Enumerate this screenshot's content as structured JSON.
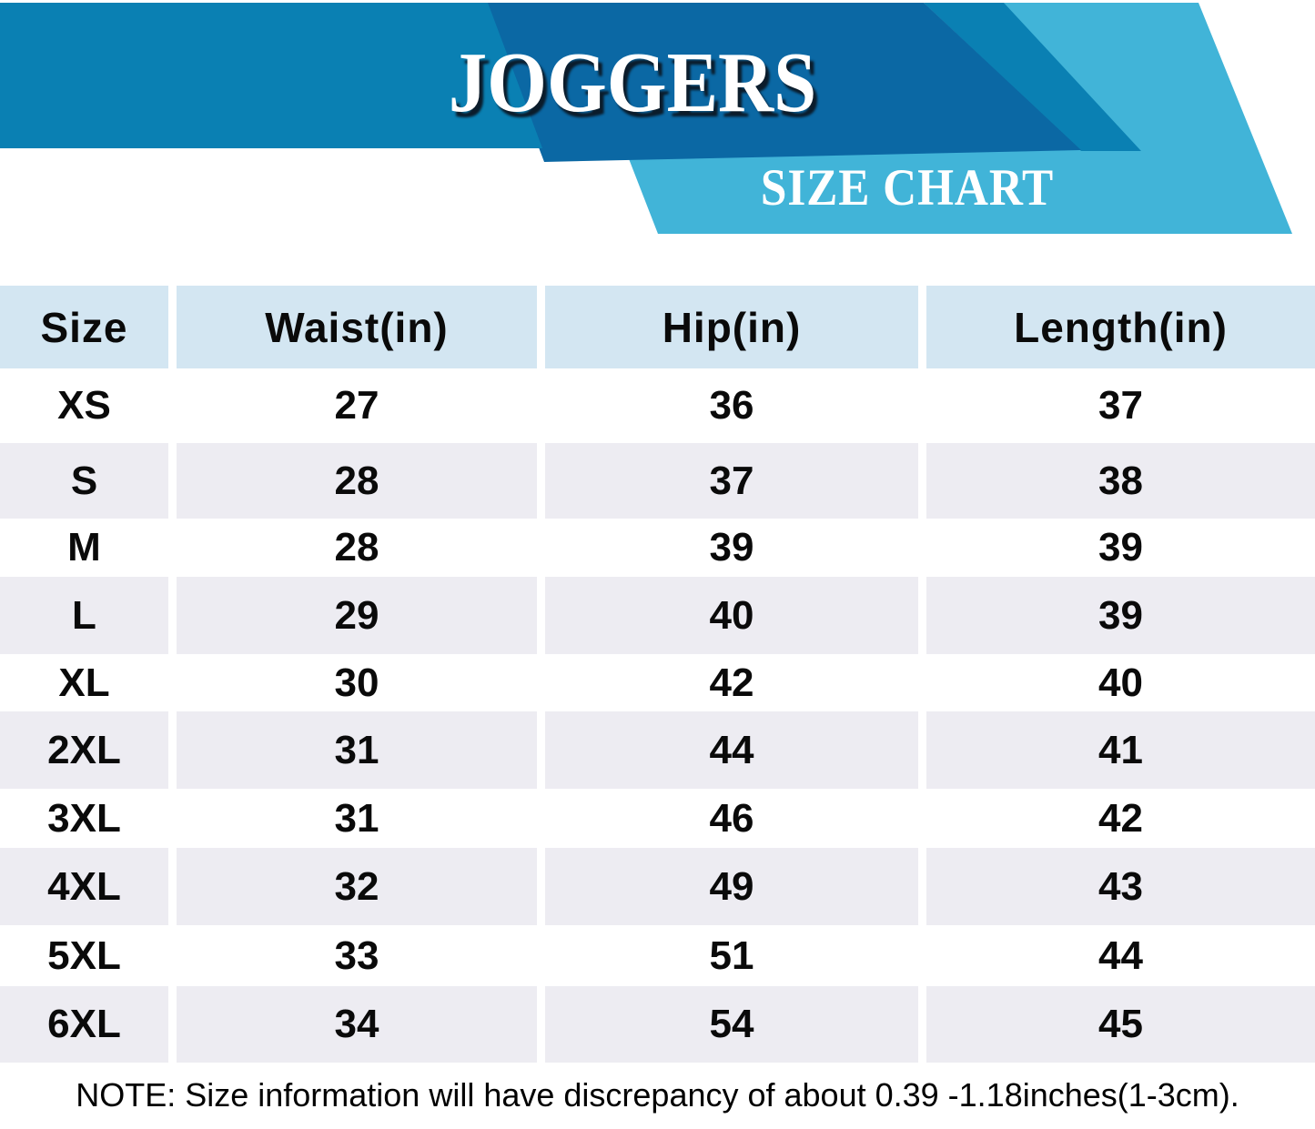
{
  "banner": {
    "title": "JOGGERS",
    "subtitle": "SIZE CHART",
    "colors": {
      "band_medium": "#0A80B3",
      "band_dark": "#0B68A4",
      "band_light": "#41B4D8",
      "title_text": "#FFFFFF",
      "title_shadow": "#0B1C2B"
    }
  },
  "chart_data": {
    "type": "table",
    "title": "JOGGERS",
    "subtitle": "SIZE CHART",
    "columns": [
      "Size",
      "Waist(in)",
      "Hip(in)",
      "Length(in)"
    ],
    "rows": [
      [
        "XS",
        "27",
        "36",
        "37"
      ],
      [
        "S",
        "28",
        "37",
        "38"
      ],
      [
        "M",
        "28",
        "39",
        "39"
      ],
      [
        "L",
        "29",
        "40",
        "39"
      ],
      [
        "XL",
        "30",
        "42",
        "40"
      ],
      [
        "2XL",
        "31",
        "44",
        "41"
      ],
      [
        "3XL",
        "31",
        "46",
        "42"
      ],
      [
        "4XL",
        "32",
        "49",
        "43"
      ],
      [
        "5XL",
        "33",
        "51",
        "44"
      ],
      [
        "6XL",
        "34",
        "54",
        "45"
      ]
    ],
    "header_bg": "#D3E6F2",
    "stripe_bg": "#EDECF2",
    "text_color": "#0A0A0A"
  },
  "note": "NOTE: Size information will have discrepancy of about 0.39 -1.18inches(1-3cm)."
}
